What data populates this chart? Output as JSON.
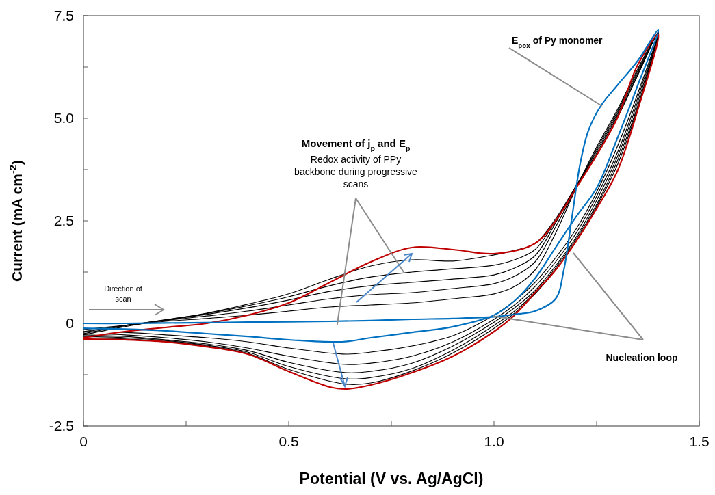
{
  "chart_data": {
    "type": "line",
    "xlabel": "Potential (V vs. Ag/AgCl)",
    "ylabel": "Current (mA cm$^{-2}$)",
    "xlim": [
      0,
      1.5
    ],
    "ylim": [
      -2.5,
      7.5
    ],
    "xticks": [
      {
        "value": 0,
        "label": "0"
      },
      {
        "value": 0.25,
        "label": null
      },
      {
        "value": 0.5,
        "label": "0.5"
      },
      {
        "value": 0.75,
        "label": null
      },
      {
        "value": 1,
        "label": "1.0"
      },
      {
        "value": 1.25,
        "label": null
      },
      {
        "value": 1.5,
        "label": "1.5"
      }
    ],
    "yticks": [
      -2.5,
      {
        "value": -1.25,
        "label": null
      },
      0,
      {
        "value": 1.25,
        "label": null
      },
      {
        "value": 2.5,
        "label": "2.5"
      },
      {
        "value": 3.75,
        "label": null
      },
      {
        "value": 5,
        "label": "5.0"
      },
      {
        "value": 6.25,
        "label": null
      },
      {
        "value": 7.5,
        "label": "7.5"
      }
    ],
    "annotations": [
      "Movement of j$_{p}$ and E$_{p}$",
      {
        "text": "Redox activity of PPy backbone during progressive scans",
        "x": 0.618,
        "y": -0.03
      },
      {
        "text": "E$_{pox}$ of Py monomer",
        "x": 1.263,
        "y": 5.3
      },
      {
        "text": "Nucleation loop",
        "x": 0.997,
        "y": 0.18
      },
      "Direction of scan"
    ],
    "series": [
      {
        "color": "#000000",
        "x": [
          0,
          0.1,
          0.2,
          0.3,
          0.4,
          0.5,
          0.6,
          0.7,
          0.8,
          0.9,
          1.0,
          1.05,
          1.1,
          1.15,
          1.2,
          1.25,
          1.3,
          1.35,
          1.4,
          1.35,
          1.3,
          1.25,
          1.2,
          1.15,
          1.1,
          1.05,
          1.0,
          0.9,
          0.8,
          0.7,
          0.64,
          0.5,
          0.4,
          0.3,
          0.2,
          0.1,
          0
        ],
        "values": [
          -0.15,
          -0.05,
          0.05,
          0.12,
          0.2,
          0.3,
          0.4,
          0.45,
          0.5,
          0.6,
          0.72,
          0.9,
          1.3,
          2.2,
          3.3,
          4.3,
          5.2,
          6.2,
          7.1,
          5.6,
          4.3,
          3.2,
          2.3,
          1.6,
          1.0,
          0.55,
          0.2,
          -0.3,
          -0.55,
          -0.7,
          -0.75,
          -0.6,
          -0.45,
          -0.35,
          -0.28,
          -0.22,
          -0.2
        ]
      },
      {
        "color": "#000000",
        "x": [
          0,
          0.1,
          0.2,
          0.3,
          0.4,
          0.5,
          0.6,
          0.7,
          0.8,
          0.9,
          1.0,
          1.05,
          1.1,
          1.15,
          1.2,
          1.25,
          1.3,
          1.35,
          1.4,
          1.35,
          1.3,
          1.25,
          1.2,
          1.15,
          1.1,
          1.05,
          1.0,
          0.9,
          0.8,
          0.7,
          0.64,
          0.5,
          0.4,
          0.3,
          0.2,
          0.1,
          0
        ],
        "values": [
          -0.2,
          -0.05,
          0.07,
          0.18,
          0.3,
          0.45,
          0.6,
          0.7,
          0.75,
          0.85,
          0.97,
          1.15,
          1.5,
          2.35,
          3.3,
          4.25,
          5.15,
          6.15,
          7.1,
          5.5,
          4.15,
          3.1,
          2.2,
          1.5,
          0.9,
          0.45,
          0.1,
          -0.45,
          -0.8,
          -0.97,
          -1.0,
          -0.8,
          -0.6,
          -0.45,
          -0.35,
          -0.28,
          -0.25
        ]
      },
      {
        "color": "#000000",
        "x": [
          0,
          0.1,
          0.2,
          0.3,
          0.4,
          0.5,
          0.6,
          0.7,
          0.8,
          0.9,
          1.0,
          1.05,
          1.1,
          1.15,
          1.2,
          1.25,
          1.3,
          1.35,
          1.4,
          1.35,
          1.3,
          1.25,
          1.2,
          1.15,
          1.1,
          1.05,
          1.0,
          0.9,
          0.8,
          0.7,
          0.64,
          0.5,
          0.4,
          0.3,
          0.2,
          0.1,
          0
        ],
        "values": [
          -0.22,
          -0.05,
          0.08,
          0.22,
          0.38,
          0.57,
          0.78,
          0.92,
          1.0,
          1.08,
          1.18,
          1.35,
          1.65,
          2.45,
          3.35,
          4.2,
          5.1,
          6.1,
          7.1,
          5.4,
          4.05,
          3.0,
          2.1,
          1.4,
          0.8,
          0.38,
          0.03,
          -0.55,
          -0.97,
          -1.17,
          -1.2,
          -0.95,
          -0.66,
          -0.5,
          -0.4,
          -0.32,
          -0.28
        ]
      },
      {
        "color": "#000000",
        "x": [
          0,
          0.1,
          0.2,
          0.3,
          0.4,
          0.5,
          0.6,
          0.7,
          0.8,
          0.9,
          1.0,
          1.05,
          1.1,
          1.15,
          1.2,
          1.25,
          1.3,
          1.35,
          1.4,
          1.35,
          1.3,
          1.25,
          1.2,
          1.15,
          1.1,
          1.05,
          1.0,
          0.9,
          0.8,
          0.7,
          0.64,
          0.5,
          0.4,
          0.3,
          0.2,
          0.1,
          0
        ],
        "values": [
          -0.25,
          -0.06,
          0.09,
          0.24,
          0.43,
          0.65,
          0.92,
          1.13,
          1.25,
          1.33,
          1.42,
          1.55,
          1.8,
          2.5,
          3.35,
          4.15,
          5.05,
          6.05,
          7.1,
          5.3,
          3.95,
          2.9,
          2.05,
          1.35,
          0.75,
          0.3,
          -0.05,
          -0.65,
          -1.1,
          -1.32,
          -1.35,
          -1.05,
          -0.7,
          -0.53,
          -0.42,
          -0.35,
          -0.32
        ]
      },
      {
        "color": "#000000",
        "x": [
          0,
          0.1,
          0.2,
          0.3,
          0.4,
          0.5,
          0.6,
          0.7,
          0.8,
          0.9,
          1.0,
          1.05,
          1.1,
          1.15,
          1.2,
          1.25,
          1.3,
          1.35,
          1.4,
          1.35,
          1.3,
          1.25,
          1.2,
          1.15,
          1.1,
          1.05,
          1.0,
          0.9,
          0.8,
          0.7,
          0.64,
          0.5,
          0.4,
          0.3,
          0.2,
          0.1,
          0
        ],
        "values": [
          -0.28,
          -0.08,
          0.08,
          0.25,
          0.47,
          0.72,
          1.08,
          1.4,
          1.55,
          1.52,
          1.67,
          1.78,
          1.95,
          2.55,
          3.35,
          4.1,
          5.0,
          6.05,
          7.1,
          5.25,
          3.85,
          2.85,
          2.0,
          1.3,
          0.72,
          0.25,
          -0.12,
          -0.72,
          -1.16,
          -1.45,
          -1.48,
          -1.12,
          -0.73,
          -0.55,
          -0.44,
          -0.38,
          -0.35
        ]
      },
      {
        "color": "#c00000",
        "x": [
          0,
          0.1,
          0.2,
          0.3,
          0.4,
          0.5,
          0.6,
          0.7,
          0.8,
          0.9,
          1.0,
          1.1,
          1.15,
          1.2,
          1.25,
          1.3,
          1.35,
          1.4,
          1.35,
          1.3,
          1.25,
          1.2,
          1.15,
          1.1,
          1.05,
          1.0,
          0.9,
          0.8,
          0.7,
          0.64,
          0.6,
          0.5,
          0.4,
          0.3,
          0.2,
          0.1,
          0
        ],
        "values": [
          -0.35,
          -0.2,
          -0.1,
          0.0,
          0.2,
          0.5,
          1.0,
          1.5,
          1.85,
          1.8,
          1.7,
          1.95,
          2.5,
          3.3,
          4.1,
          5.0,
          6.3,
          7.05,
          5.2,
          3.7,
          2.8,
          2.0,
          1.3,
          0.75,
          0.2,
          -0.2,
          -0.8,
          -1.2,
          -1.5,
          -1.6,
          -1.55,
          -1.17,
          -0.75,
          -0.57,
          -0.45,
          -0.4,
          -0.38
        ]
      },
      {
        "color": "#0070c0",
        "x": [
          0,
          0.1,
          0.2,
          0.3,
          0.4,
          0.5,
          0.6,
          0.7,
          0.8,
          0.9,
          1.0,
          1.05,
          1.1,
          1.15,
          1.17,
          1.19,
          1.21,
          1.23,
          1.26,
          1.3,
          1.35,
          1.4,
          1.35,
          1.3,
          1.25,
          1.2,
          1.15,
          1.1,
          1.05,
          1.0,
          0.9,
          0.8,
          0.7,
          0.63,
          0.5,
          0.4,
          0.3,
          0.2,
          0.1,
          0
        ],
        "values": [
          0.0,
          0.0,
          0.01,
          0.02,
          0.03,
          0.04,
          0.05,
          0.07,
          0.1,
          0.12,
          0.16,
          0.22,
          0.3,
          0.6,
          1.3,
          2.6,
          3.9,
          4.7,
          5.3,
          5.8,
          6.4,
          7.15,
          5.8,
          4.5,
          3.3,
          2.6,
          1.85,
          1.1,
          0.55,
          0.2,
          -0.08,
          -0.22,
          -0.35,
          -0.45,
          -0.4,
          -0.32,
          -0.25,
          -0.18,
          -0.14,
          -0.12
        ]
      }
    ]
  }
}
